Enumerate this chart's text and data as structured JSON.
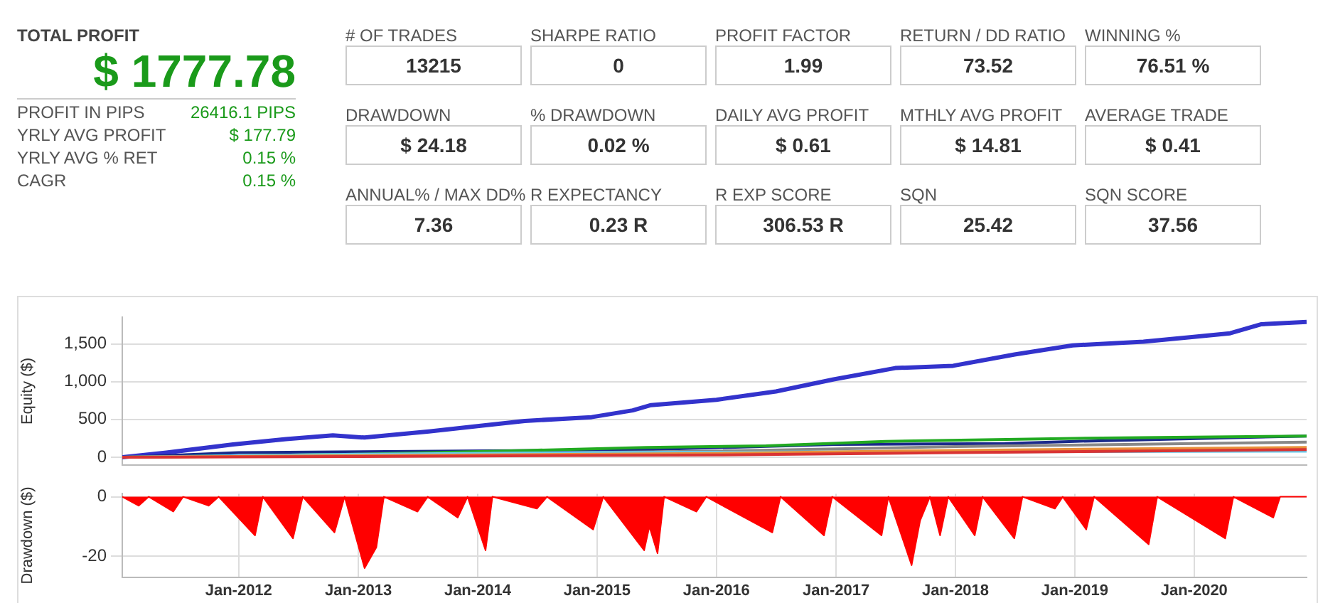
{
  "chart_data": [
    {
      "type": "other",
      "title": "TOTAL PROFIT",
      "subtitle": "$ 1777.78",
      "color": "#1a9a1a",
      "categories": [
        "PROFIT IN PIPS",
        "YRLY AVG PROFIT",
        "YRLY AVG % RET",
        "CAGR"
      ],
      "value_labels": [
        "26416.1 PIPS",
        "$ 177.79",
        "0.15 %",
        "0.15 %"
      ]
    },
    {
      "type": "other",
      "categories": [
        "# OF TRADES",
        "SHARPE RATIO",
        "PROFIT FACTOR",
        "RETURN / DD RATIO",
        "WINNING %",
        "DRAWDOWN",
        "% DRAWDOWN",
        "DAILY AVG PROFIT",
        "MTHLY AVG PROFIT",
        "AVERAGE TRADE",
        "ANNUAL% / MAX DD%",
        "R EXPECTANCY",
        "R EXP SCORE",
        "SQN",
        "SQN SCORE"
      ],
      "value_labels": [
        "13215",
        "0",
        "1.99",
        "73.52",
        "76.51 %",
        "$ 24.18",
        "0.02 %",
        "$ 0.61",
        "$ 14.81",
        "$ 0.41",
        "7.36",
        "0.23 R",
        "306.53 R",
        "25.42",
        "37.56"
      ]
    },
    {
      "type": "line",
      "ylabel": "Equity ($)",
      "xlim": [
        "2011-01-10",
        "2020-12-10"
      ],
      "ylim": [
        -100,
        1850
      ],
      "xticks": [
        {
          "value": "2012-01",
          "label": null
        },
        {
          "value": "2013-01",
          "label": null
        },
        {
          "value": "2014-01",
          "label": null
        },
        {
          "value": "2015-01",
          "label": null
        },
        {
          "value": "2016-01",
          "label": null
        },
        {
          "value": "2017-01",
          "label": null
        },
        {
          "value": "2018-01",
          "label": null
        },
        {
          "value": "2019-01",
          "label": null
        },
        {
          "value": "2020-01",
          "label": null
        }
      ],
      "yticks": [
        0,
        500,
        {
          "value": 1000,
          "label": "1,000"
        },
        {
          "value": 1500,
          "label": "1,500"
        }
      ],
      "tick_labels": "y",
      "grid": true,
      "legend": false,
      "marker": "none",
      "series": [
        {
          "color": "#d93333",
          "x": [
            "2011-01-10",
            "2013-01-01",
            "2016-01-01",
            "2018-01-01",
            "2020-12-10"
          ],
          "values": [
            0,
            10,
            30,
            60,
            100
          ]
        },
        {
          "color": "#e8903a",
          "x": [
            "2011-01-10",
            "2013-01-01",
            "2016-01-01",
            "2018-01-01",
            "2020-12-10"
          ],
          "values": [
            0,
            20,
            50,
            90,
            130
          ]
        },
        {
          "color": "#66ccee",
          "x": [
            "2011-01-10",
            "2013-01-01",
            "2015-01-01",
            "2017-01-01",
            "2020-12-10"
          ],
          "values": [
            0,
            40,
            60,
            70,
            80
          ]
        },
        {
          "color": "#888888",
          "x": [
            "2011-01-10",
            "2013-01-01",
            "2016-01-01",
            "2018-01-01",
            "2020-12-10"
          ],
          "values": [
            0,
            30,
            80,
            140,
            200
          ]
        },
        {
          "color": "#22aa22",
          "x": [
            "2011-01-10",
            "2013-01-01",
            "2014-06-01",
            "2015-06-01",
            "2016-06-01",
            "2017-06-01",
            "2019-01-01",
            "2020-12-10"
          ],
          "values": [
            0,
            40,
            90,
            130,
            150,
            210,
            250,
            280
          ]
        },
        {
          "color": "#1a2a8a",
          "x": [
            "2011-01-10",
            "2012-01-01",
            "2015-06-01",
            "2017-01-01",
            "2018-06-01",
            "2019-01-01",
            "2020-12-10"
          ],
          "values": [
            0,
            60,
            100,
            170,
            180,
            210,
            280
          ]
        },
        {
          "color": "#3333cc",
          "x": [
            "2011-01-10",
            "2011-05-25",
            "2011-12-15",
            "2012-05-25",
            "2012-10-15",
            "2013-01-20",
            "2013-08-05",
            "2014-01-20",
            "2014-05-25",
            "2014-12-15",
            "2015-04-20",
            "2015-06-15",
            "2016-01-01",
            "2016-07-01",
            "2016-12-25",
            "2017-07-01",
            "2017-12-25",
            "2018-07-01",
            "2018-12-25",
            "2019-07-30",
            "2019-12-25",
            "2020-04-20",
            "2020-07-25",
            "2020-12-10"
          ],
          "values": [
            0,
            60,
            170,
            240,
            290,
            260,
            340,
            420,
            480,
            530,
            620,
            690,
            760,
            870,
            1030,
            1180,
            1210,
            1360,
            1480,
            1530,
            1590,
            1640,
            1760,
            1790
          ]
        }
      ]
    },
    {
      "type": "area",
      "ylabel": "Drawdown ($)",
      "xlim": [
        "2011-01-10",
        "2020-12-10"
      ],
      "ylim": [
        -27,
        1
      ],
      "xticks": [
        {
          "value": "2012-01",
          "label": "Jan-2012"
        },
        {
          "value": "2013-01",
          "label": "Jan-2013"
        },
        {
          "value": "2014-01",
          "label": "Jan-2014"
        },
        {
          "value": "2015-01",
          "label": "Jan-2015"
        },
        {
          "value": "2016-01",
          "label": "Jan-2016"
        },
        {
          "value": "2017-01",
          "label": "Jan-2017"
        },
        {
          "value": "2018-01",
          "label": "Jan-2018"
        },
        {
          "value": "2019-01",
          "label": "Jan-2019"
        },
        {
          "value": "2020-01",
          "label": "Jan-2020"
        }
      ],
      "yticks": [
        -20,
        0
      ],
      "grid": true,
      "legend": false,
      "marker": "none",
      "series": [
        {
          "color": "#ff0000",
          "x": [
            "2011-01-10",
            "2011-03-01",
            "2011-04-01",
            "2011-06-15",
            "2011-07-15",
            "2011-10-01",
            "2011-11-01",
            "2012-02-20",
            "2012-03-15",
            "2012-06-15",
            "2012-07-15",
            "2012-10-20",
            "2012-11-20",
            "2013-01-20",
            "2013-02-25",
            "2013-03-20",
            "2013-07-01",
            "2013-08-01",
            "2013-11-01",
            "2013-12-01",
            "2014-01-25",
            "2014-02-15",
            "2014-07-01",
            "2014-08-01",
            "2014-12-20",
            "2015-01-20",
            "2015-05-25",
            "2015-06-10",
            "2015-07-05",
            "2015-07-25",
            "2015-11-01",
            "2015-12-01",
            "2016-06-20",
            "2016-07-15",
            "2016-11-25",
            "2016-12-20",
            "2017-05-20",
            "2017-06-10",
            "2017-08-20",
            "2017-09-15",
            "2017-10-15",
            "2017-11-15",
            "2017-12-10",
            "2018-03-01",
            "2018-03-25",
            "2018-06-30",
            "2018-07-25",
            "2018-11-01",
            "2018-11-25",
            "2019-02-05",
            "2019-03-01",
            "2019-08-15",
            "2019-09-10",
            "2020-04-05",
            "2020-04-30",
            "2020-08-30",
            "2020-09-20",
            "2020-12-10"
          ],
          "values": [
            0,
            -3,
            0,
            -5,
            0,
            -3,
            0,
            -13,
            0,
            -14,
            0,
            -12,
            0,
            -24,
            -17,
            0,
            -5,
            0,
            -7,
            0,
            -18,
            0,
            -4,
            0,
            -11,
            0,
            -18,
            -10,
            -19,
            0,
            -5,
            0,
            -12,
            0,
            -13,
            0,
            -13,
            0,
            -23,
            -8,
            0,
            -13,
            0,
            -13,
            0,
            -14,
            0,
            -4,
            0,
            -11,
            0,
            -16,
            0,
            -14,
            0,
            -7,
            0,
            0
          ]
        }
      ]
    }
  ]
}
